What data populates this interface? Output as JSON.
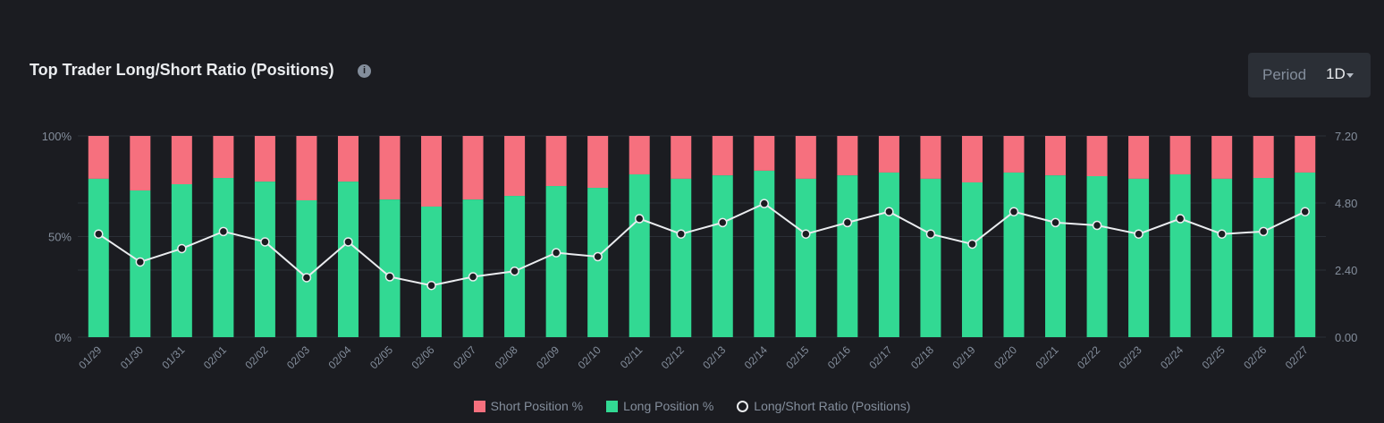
{
  "header": {
    "title": "Top Trader Long/Short Ratio (Positions)",
    "info_icon": "info-icon",
    "period_label": "Period",
    "period_value": "1D"
  },
  "colors": {
    "short": "#f6707e",
    "long": "#32d993",
    "ratio": "#eaecef"
  },
  "chart_data": {
    "type": "bar",
    "title": "Top Trader Long/Short Ratio (Positions)",
    "categories": [
      "01/29",
      "01/30",
      "01/31",
      "02/01",
      "02/02",
      "02/03",
      "02/04",
      "02/05",
      "02/06",
      "02/07",
      "02/08",
      "02/09",
      "02/10",
      "02/11",
      "02/12",
      "02/13",
      "02/14",
      "02/15",
      "02/16",
      "02/17",
      "02/18",
      "02/19",
      "02/20",
      "02/21",
      "02/22",
      "02/23",
      "02/24",
      "02/25",
      "02/26",
      "02/27"
    ],
    "series": [
      {
        "name": "Short Position %",
        "type": "stacked-bar",
        "values": [
          21.3,
          27.1,
          24.0,
          20.9,
          22.7,
          32.0,
          22.7,
          31.6,
          35.1,
          31.6,
          29.8,
          24.9,
          25.8,
          19.1,
          21.3,
          19.6,
          17.3,
          21.3,
          19.6,
          18.2,
          21.3,
          23.1,
          18.2,
          19.6,
          20.0,
          21.3,
          19.1,
          21.3,
          20.9,
          18.2
        ]
      },
      {
        "name": "Long Position %",
        "type": "stacked-bar",
        "values": [
          78.7,
          72.9,
          76.0,
          79.1,
          77.3,
          68.0,
          77.3,
          68.4,
          64.9,
          68.4,
          70.2,
          75.1,
          74.2,
          80.9,
          78.7,
          80.4,
          82.7,
          78.7,
          80.4,
          81.8,
          78.7,
          76.9,
          81.8,
          80.4,
          80.0,
          78.7,
          80.9,
          78.7,
          79.1,
          81.8
        ]
      },
      {
        "name": "Long/Short Ratio (Positions)",
        "type": "line",
        "axis": "right",
        "values": [
          3.69,
          2.69,
          3.17,
          3.78,
          3.41,
          2.13,
          3.41,
          2.16,
          1.85,
          2.16,
          2.36,
          3.02,
          2.88,
          4.24,
          3.69,
          4.1,
          4.78,
          3.69,
          4.1,
          4.49,
          3.69,
          3.33,
          4.49,
          4.1,
          4.0,
          3.69,
          4.24,
          3.69,
          3.78,
          4.49
        ]
      }
    ],
    "left_axis": {
      "ticks": [
        "0%",
        "50%",
        "100%"
      ],
      "ylim": [
        0,
        100
      ]
    },
    "right_axis": {
      "ticks": [
        "0.00",
        "2.40",
        "4.80",
        "7.20"
      ],
      "ylim": [
        0,
        7.2
      ]
    },
    "legend": [
      "Short Position %",
      "Long Position %",
      "Long/Short Ratio (Positions)"
    ],
    "legend_position": "bottom"
  }
}
